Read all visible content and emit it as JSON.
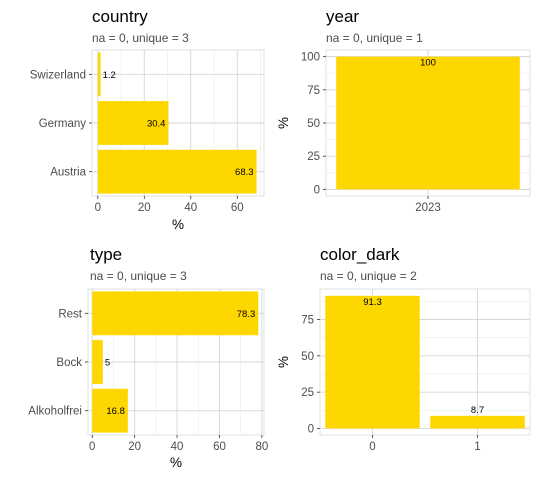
{
  "accent_color": "#FFD700",
  "chart_data": [
    {
      "type": "bar",
      "orientation": "horizontal",
      "title": "country",
      "subtitle": "na = 0, unique = 3",
      "categories": [
        "Austria",
        "Germany",
        "Swizerland"
      ],
      "values": [
        68.3,
        30.4,
        1.2
      ],
      "data_labels": [
        "68.3",
        "30.4",
        "1.2"
      ],
      "xlabel": "%",
      "ylabel": "",
      "xlim": [
        -2.5,
        71.5
      ],
      "ticks": [
        0,
        20,
        40,
        60
      ],
      "tick_labels": [
        "0",
        "20",
        "40",
        "60"
      ],
      "grid": true
    },
    {
      "type": "bar",
      "orientation": "vertical",
      "title": "year",
      "subtitle": "na = 0, unique = 1",
      "categories": [
        "2023"
      ],
      "values": [
        100
      ],
      "data_labels": [
        "100"
      ],
      "xlabel": "",
      "ylabel": "%",
      "ylim": [
        -5,
        105
      ],
      "ticks": [
        0,
        25,
        50,
        75,
        100
      ],
      "tick_labels": [
        "0",
        "25",
        "50",
        "75",
        "100"
      ],
      "grid": true
    },
    {
      "type": "bar",
      "orientation": "horizontal",
      "title": "type",
      "subtitle": "na = 0, unique = 3",
      "categories": [
        "Alkoholfrei",
        "Bock",
        "Rest"
      ],
      "values": [
        16.8,
        5,
        78.3
      ],
      "data_labels": [
        "16.8",
        "5",
        "78.3"
      ],
      "xlabel": "%",
      "ylabel": "",
      "xlim": [
        -2,
        81
      ],
      "ticks": [
        0,
        20,
        40,
        60,
        80
      ],
      "tick_labels": [
        "0",
        "20",
        "40",
        "60",
        "80"
      ],
      "grid": true
    },
    {
      "type": "bar",
      "orientation": "vertical",
      "title": "color_dark",
      "subtitle": "na = 0, unique = 2",
      "categories": [
        "0",
        "1"
      ],
      "values": [
        91.3,
        8.7
      ],
      "data_labels": [
        "91.3",
        "8.7"
      ],
      "xlabel": "",
      "ylabel": "%",
      "ylim": [
        -4.5,
        96
      ],
      "ticks": [
        0,
        25,
        50,
        75
      ],
      "tick_labels": [
        "0",
        "25",
        "50",
        "75"
      ],
      "grid": true
    }
  ]
}
